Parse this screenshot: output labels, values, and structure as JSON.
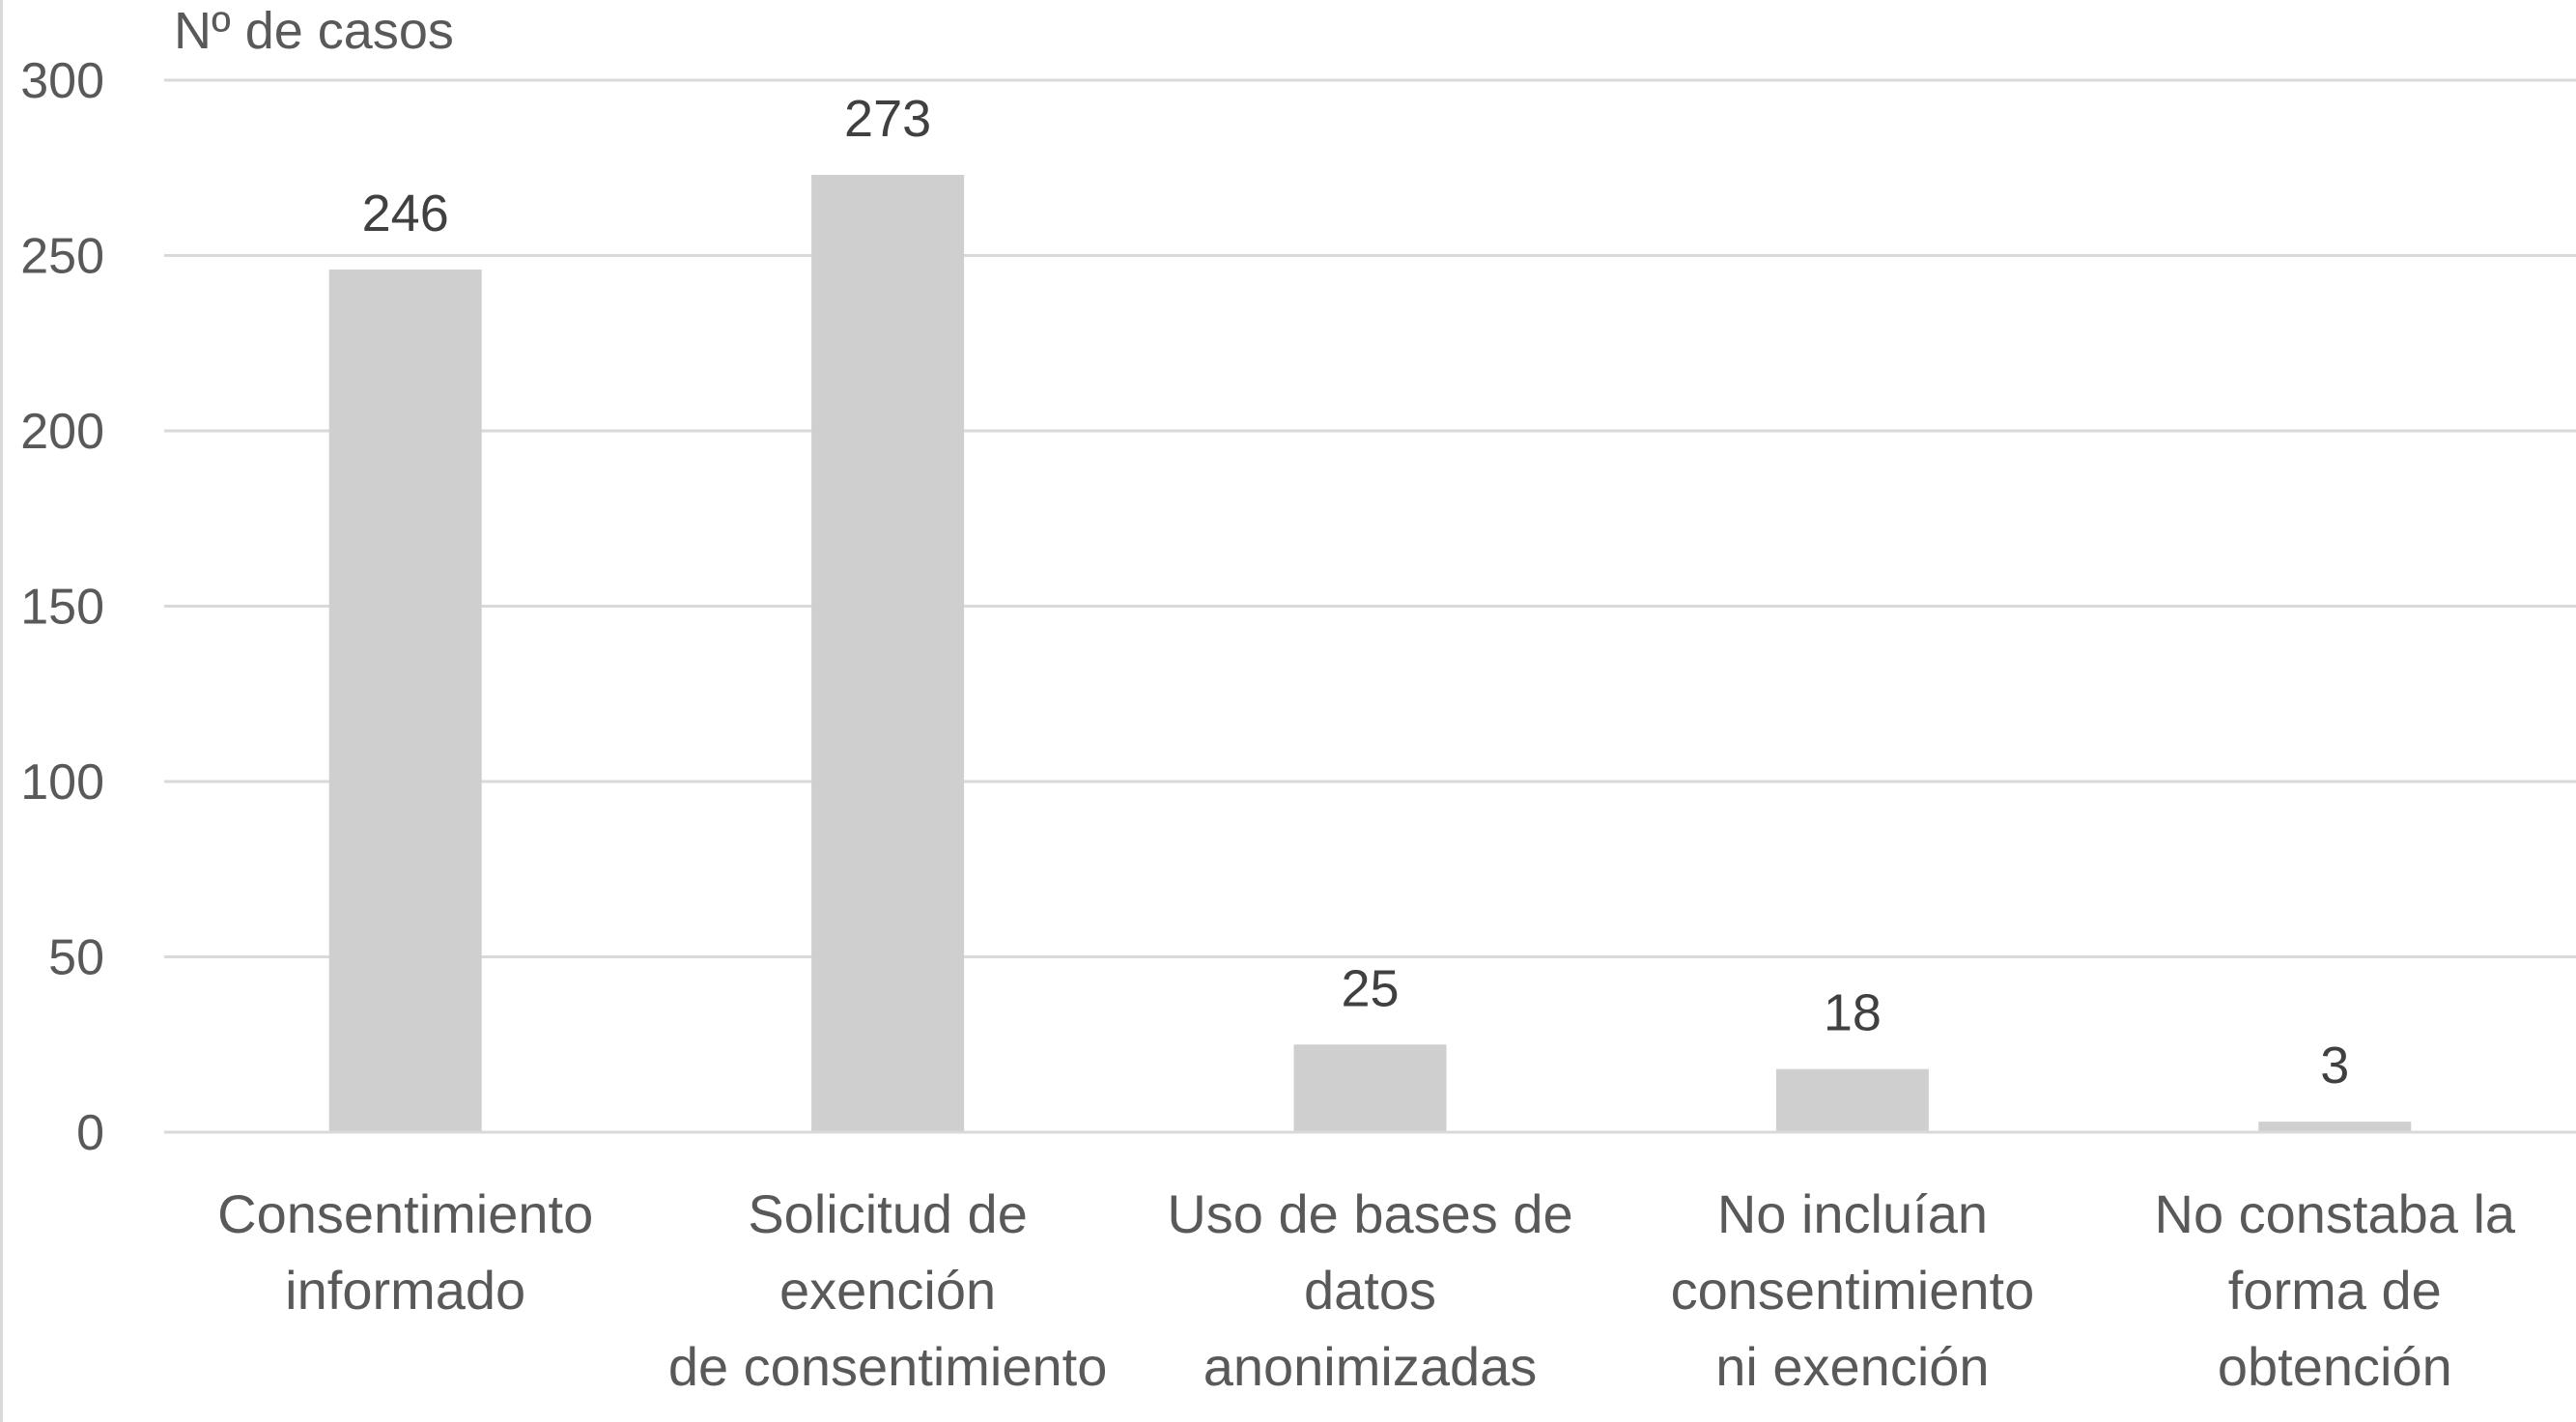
{
  "chart_data": {
    "type": "bar",
    "ylabel": "Nº de casos",
    "ylim": [
      0,
      300
    ],
    "yticks": [
      "0",
      "50",
      "100",
      "150",
      "200",
      "250",
      "300"
    ],
    "categories": [
      [
        "Consentimiento",
        "informado"
      ],
      [
        "Solicitud de",
        "exención",
        "de consentimiento"
      ],
      [
        "Uso de bases de",
        "datos",
        "anonimizadas"
      ],
      [
        "No incluían",
        "consentimiento",
        "ni exención"
      ],
      [
        "No constaba la",
        "forma de",
        "obtención"
      ]
    ],
    "values": [
      246,
      273,
      25,
      18,
      3
    ],
    "grid": true,
    "bar_color": "#d0cfd0"
  }
}
